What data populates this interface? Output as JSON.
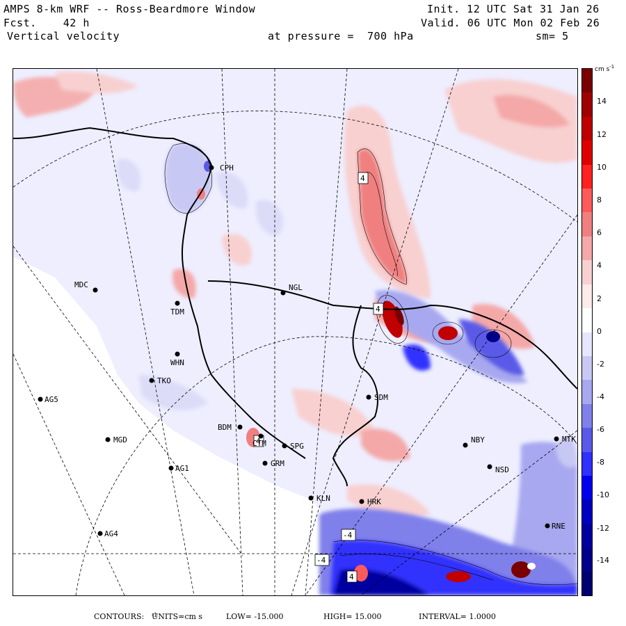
{
  "header": {
    "model": "AMPS 8-km WRF -- Ross-Beardmore Window",
    "fcst_label": "Fcst.",
    "fcst_value": "42 h",
    "field": "Vertical velocity",
    "init": "Init. 12 UTC Sat 31 Jan 26",
    "valid": "Valid. 06 UTC Mon 02 Feb 26",
    "pressure_label": "at pressure =",
    "pressure_value": "700 hPa",
    "smooth": "sm= 5"
  },
  "colorbar": {
    "units": "cm s",
    "units_exp": "-1",
    "ticks": [
      "14",
      "12",
      "10",
      "8",
      "6",
      "4",
      "2",
      "0",
      "-2",
      "-4",
      "-6",
      "-8",
      "-10",
      "-12",
      "-14"
    ],
    "colors": [
      "#7a0000",
      "#a00000",
      "#c00000",
      "#e00000",
      "#ff2020",
      "#ff5a5a",
      "#f08080",
      "#f4a8a8",
      "#f8d0d0",
      "#fdeaea",
      "#ffffff",
      "#e6e6ff",
      "#c8c8f4",
      "#a8a8f0",
      "#8080ea",
      "#5a5ae8",
      "#3030ff",
      "#0000f0",
      "#0000c0",
      "#0000a0",
      "#00008a",
      "#000070"
    ]
  },
  "stations": [
    {
      "id": "CPH",
      "lx": 12,
      "ly": 4
    },
    {
      "id": "MDC",
      "lx": -30,
      "ly": -4
    },
    {
      "id": "NGL",
      "lx": 8,
      "ly": -4
    },
    {
      "id": "TDM",
      "lx": -10,
      "ly": 16
    },
    {
      "id": "WHN",
      "lx": -10,
      "ly": 16
    },
    {
      "id": "TKO",
      "lx": 8,
      "ly": 4
    },
    {
      "id": "AG5",
      "lx": 6,
      "ly": 4
    },
    {
      "id": "SDM",
      "lx": 8,
      "ly": 4
    },
    {
      "id": "MGD",
      "lx": 8,
      "ly": 4
    },
    {
      "id": "BDM",
      "lx": -32,
      "ly": 4
    },
    {
      "id": "NBY",
      "lx": 8,
      "ly": -4
    },
    {
      "id": "MTK",
      "lx": 8,
      "ly": 4
    },
    {
      "id": "CTM",
      "lx": -12,
      "ly": 14
    },
    {
      "id": "SPG",
      "lx": 8,
      "ly": 4
    },
    {
      "id": "GRM",
      "lx": 8,
      "ly": 4
    },
    {
      "id": "AG1",
      "lx": 6,
      "ly": 4
    },
    {
      "id": "NSD",
      "lx": 8,
      "ly": 8
    },
    {
      "id": "KLN",
      "lx": 8,
      "ly": 4
    },
    {
      "id": "HRK",
      "lx": 8,
      "ly": 4
    },
    {
      "id": "AG4",
      "lx": 6,
      "ly": 4
    },
    {
      "id": "RNE",
      "lx": 6,
      "ly": 4
    }
  ],
  "contour_labels": [
    "4",
    "4",
    "4",
    "-4",
    "-4",
    "4"
  ],
  "footer": {
    "contours": "CONTOURS:",
    "units_label": "UNITS=cm s",
    "units_exp": "-1",
    "low": "LOW= -15.000",
    "high": "HIGH= 15.000",
    "interval": "INTERVAL= 1.0000"
  }
}
